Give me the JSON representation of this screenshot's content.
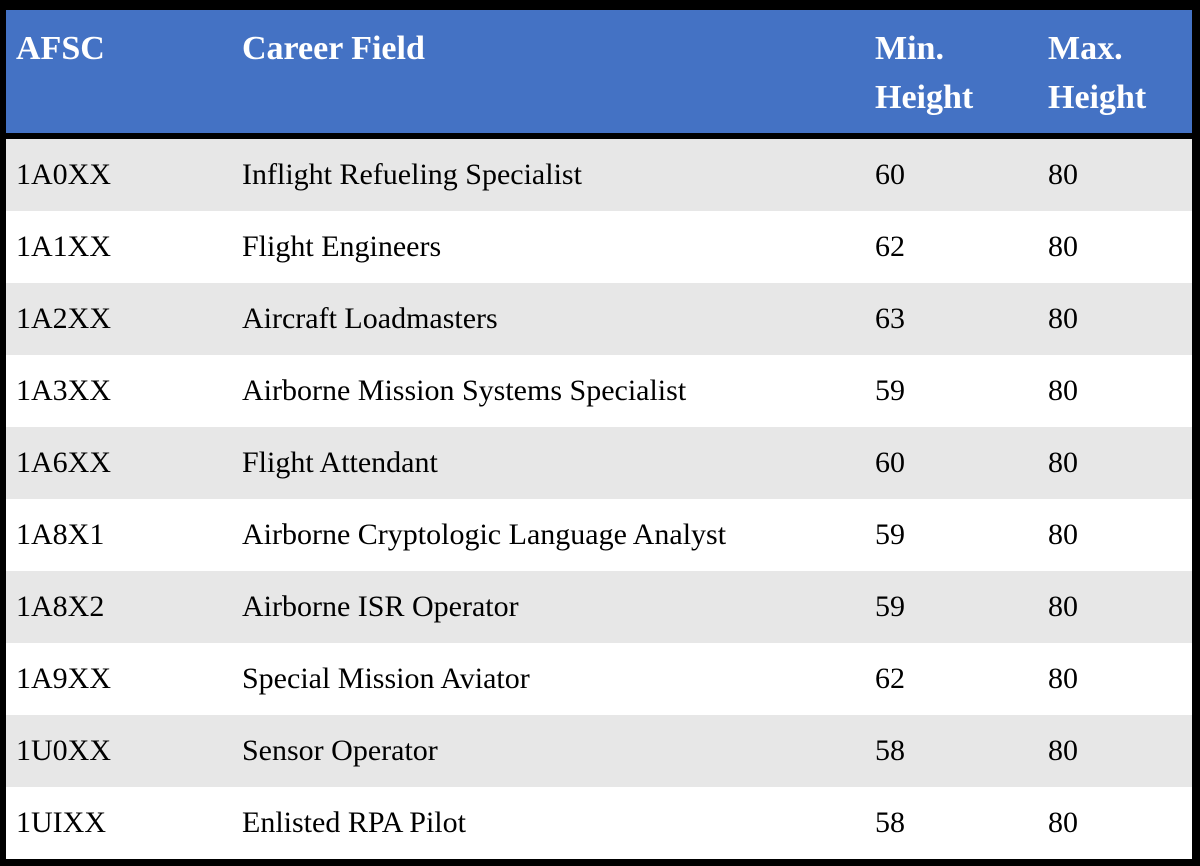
{
  "table": {
    "columns": [
      {
        "key": "afsc",
        "label": "AFSC"
      },
      {
        "key": "career_field",
        "label": "Career Field"
      },
      {
        "key": "min_height",
        "label": "Min. Height"
      },
      {
        "key": "max_height",
        "label": "Max. Height"
      }
    ],
    "rows": [
      {
        "afsc": "1A0XX",
        "career_field": "Inflight Refueling Specialist",
        "min_height": "60",
        "max_height": "80"
      },
      {
        "afsc": "1A1XX",
        "career_field": "Flight Engineers",
        "min_height": "62",
        "max_height": "80"
      },
      {
        "afsc": "1A2XX",
        "career_field": "Aircraft Loadmasters",
        "min_height": "63",
        "max_height": "80"
      },
      {
        "afsc": "1A3XX",
        "career_field": "Airborne Mission Systems Specialist",
        "min_height": "59",
        "max_height": "80"
      },
      {
        "afsc": "1A6XX",
        "career_field": "Flight Attendant",
        "min_height": "60",
        "max_height": "80"
      },
      {
        "afsc": "1A8X1",
        "career_field": "Airborne Cryptologic Language Analyst",
        "min_height": "59",
        "max_height": "80"
      },
      {
        "afsc": "1A8X2",
        "career_field": "Airborne ISR Operator",
        "min_height": "59",
        "max_height": "80"
      },
      {
        "afsc": "1A9XX",
        "career_field": "Special Mission Aviator",
        "min_height": "62",
        "max_height": "80"
      },
      {
        "afsc": "1U0XX",
        "career_field": "Sensor Operator",
        "min_height": "58",
        "max_height": "80"
      },
      {
        "afsc": "1UIXX",
        "career_field": "Enlisted RPA Pilot",
        "min_height": "58",
        "max_height": "80"
      }
    ]
  },
  "colors": {
    "header_bg": "#4472C4",
    "header_text": "#FFFFFF",
    "row_alt_bg": "#E7E7E7",
    "row_bg": "#FFFFFF",
    "border": "#000000"
  }
}
